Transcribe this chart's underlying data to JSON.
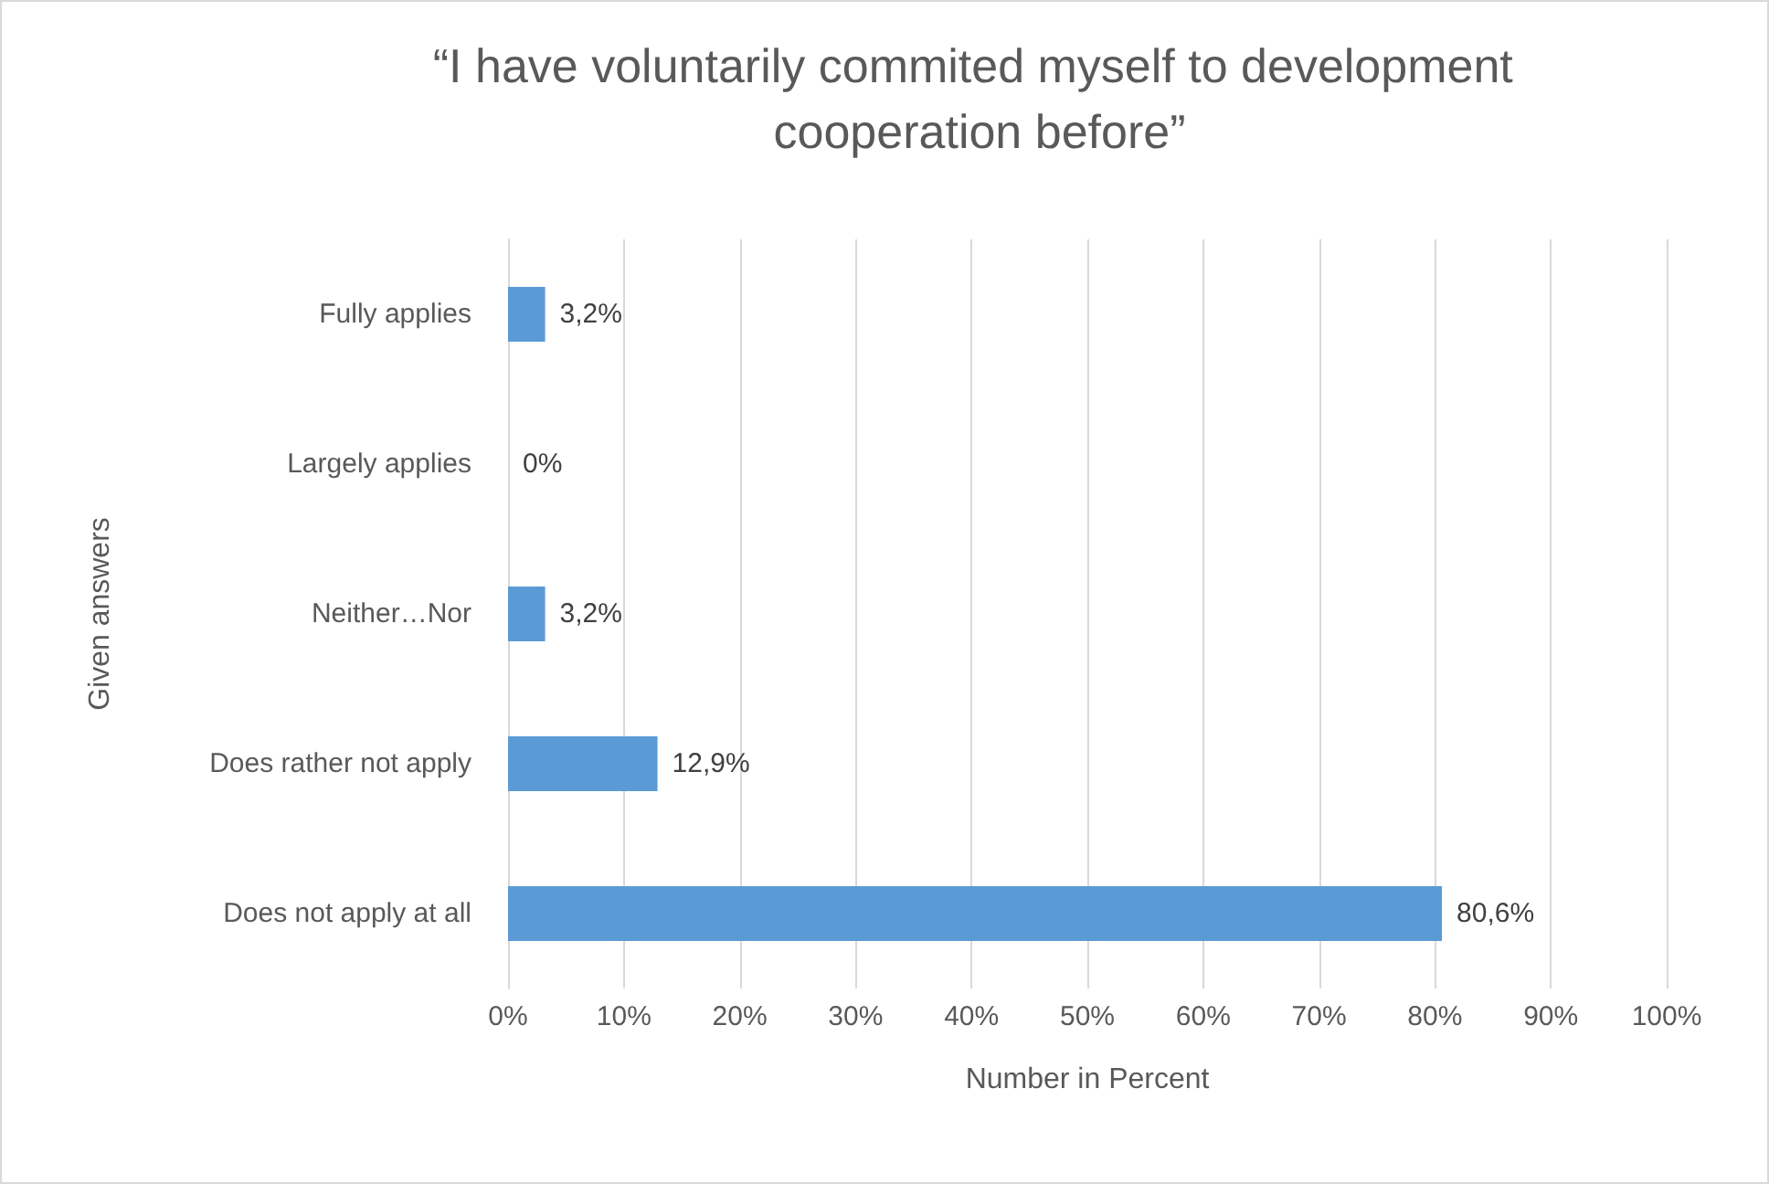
{
  "chart_data": {
    "type": "bar",
    "orientation": "horizontal",
    "title": "“I have voluntarily commited myself to development cooperation before”",
    "xlabel": "Number in Percent",
    "ylabel": "Given answers",
    "categories": [
      "Fully applies",
      "Largely applies",
      "Neither…Nor",
      "Does rather not apply",
      "Does not apply at all"
    ],
    "values": [
      3.2,
      0,
      3.2,
      12.9,
      80.6
    ],
    "value_labels": [
      "3,2%",
      "0%",
      "3,2%",
      "12,9%",
      "80,6%"
    ],
    "color": "#5b9bd5",
    "xlim": [
      0,
      100
    ],
    "xticks": [
      {
        "value": 0,
        "label": "0%"
      },
      {
        "value": 10,
        "label": "10%"
      },
      {
        "value": 20,
        "label": "20%"
      },
      {
        "value": 30,
        "label": "30%"
      },
      {
        "value": 40,
        "label": "40%"
      },
      {
        "value": 50,
        "label": "50%"
      },
      {
        "value": 60,
        "label": "60%"
      },
      {
        "value": 70,
        "label": "70%"
      },
      {
        "value": 80,
        "label": "80%"
      },
      {
        "value": 90,
        "label": "90%"
      },
      {
        "value": 100,
        "label": "100%"
      }
    ],
    "grid": "x"
  }
}
